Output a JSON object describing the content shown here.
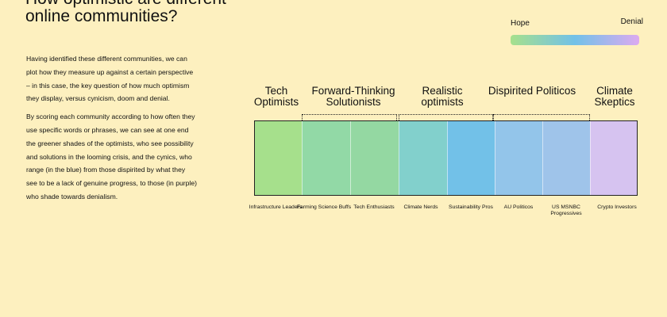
{
  "title": "How optimistic are different online communities?",
  "paragraphs": [
    "Having identified these different communities, we can plot how they measure up against a certain perspective – in this case, the key question of how much optimism they display, versus cynicism, doom and denial.",
    "By scoring each community according to how often they use specific words or phrases, we can see at one end the greener shades of the optimists, who see possibility and solutions in the looming crisis, and the cynics, who range (in the blue) from those dispirited by what they see to be a lack of genuine progress, to those (in purple) who shade towards denialism."
  ],
  "legend": {
    "left_label": "Hope",
    "right_label": "Denial",
    "gradient_colors": [
      "#a6e08c",
      "#72c1e8",
      "#dcaaf0"
    ]
  },
  "groups": [
    {
      "label": "Tech Optimists"
    },
    {
      "label": "Forward-Thinking Solutionists"
    },
    {
      "label": "Realistic optimists"
    },
    {
      "label": "Dispirited Politicos"
    },
    {
      "label": "Climate Skeptics"
    }
  ],
  "communities": [
    {
      "label": "Infrastructure Leaders",
      "color": "#a6e08c"
    },
    {
      "label": "Farming Science Buffs",
      "color": "#92d9a6"
    },
    {
      "label": "Tech Enthusiasts",
      "color": "#94d8a2"
    },
    {
      "label": "Climate Nerds",
      "color": "#82d0cc"
    },
    {
      "label": "Sustainability Pros",
      "color": "#72c1e8"
    },
    {
      "label": "AU Politicos",
      "color": "#93c5ea"
    },
    {
      "label": "US MSNBC Progressives",
      "color": "#9fc4ea"
    },
    {
      "label": "Crypto Investors",
      "color": "#d6c3f0"
    }
  ]
}
